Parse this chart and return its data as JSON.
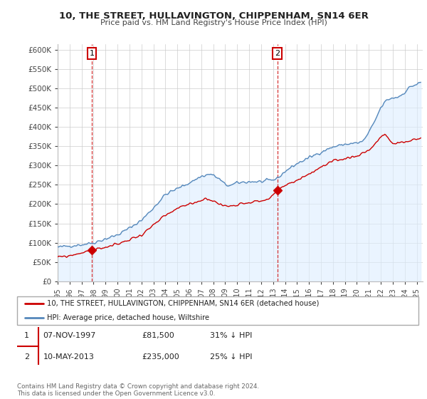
{
  "title": "10, THE STREET, HULLAVINGTON, CHIPPENHAM, SN14 6ER",
  "subtitle": "Price paid vs. HM Land Registry's House Price Index (HPI)",
  "ylabel_ticks": [
    "£0",
    "£50K",
    "£100K",
    "£150K",
    "£200K",
    "£250K",
    "£300K",
    "£350K",
    "£400K",
    "£450K",
    "£500K",
    "£550K",
    "£600K"
  ],
  "ytick_values": [
    0,
    50000,
    100000,
    150000,
    200000,
    250000,
    300000,
    350000,
    400000,
    450000,
    500000,
    550000,
    600000
  ],
  "ylim": [
    0,
    615000
  ],
  "xlim_start": 1995.0,
  "xlim_end": 2025.5,
  "sale1_x": 1997.85,
  "sale1_y": 81500,
  "sale2_x": 2013.36,
  "sale2_y": 235000,
  "legend_line1": "10, THE STREET, HULLAVINGTON, CHIPPENHAM, SN14 6ER (detached house)",
  "legend_line2": "HPI: Average price, detached house, Wiltshire",
  "footer": "Contains HM Land Registry data © Crown copyright and database right 2024.\nThis data is licensed under the Open Government Licence v3.0.",
  "line_color_red": "#cc0000",
  "line_color_blue": "#5588bb",
  "fill_color_blue": "#ddeeff",
  "background_color": "#ffffff",
  "grid_color": "#cccccc",
  "fig_width": 6.0,
  "fig_height": 5.6,
  "dpi": 100
}
